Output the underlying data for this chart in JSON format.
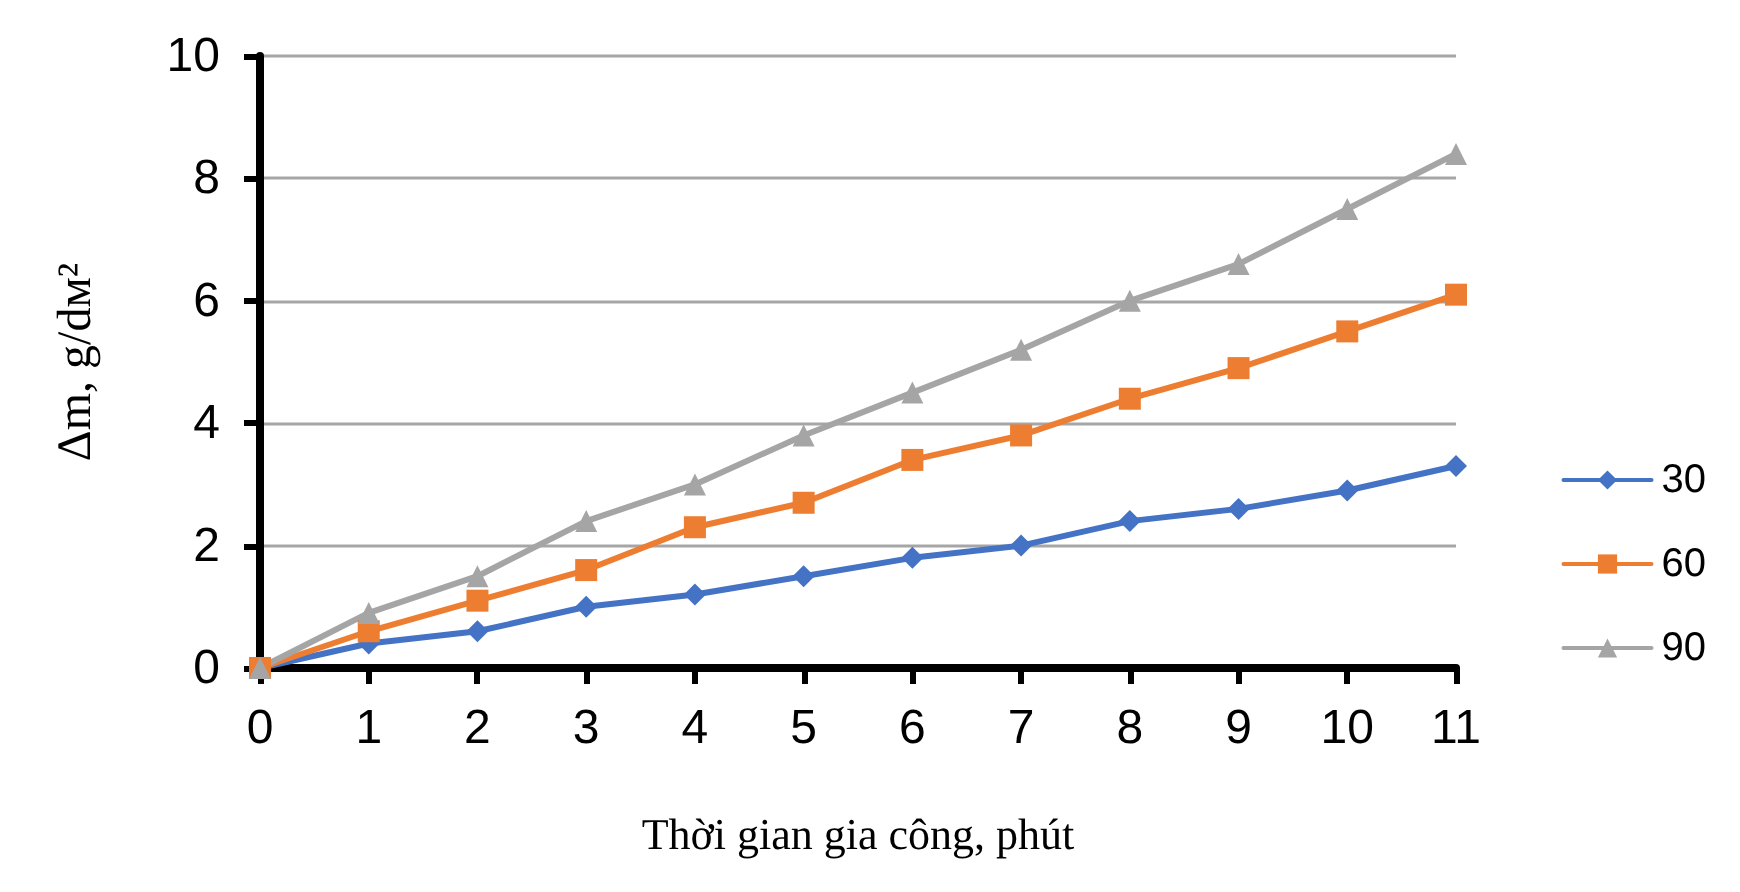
{
  "chart_data": {
    "type": "line",
    "xlabel": "Thời gian gia công, phút",
    "ylabel": "Δm, g/dм²",
    "x": [
      0,
      1,
      2,
      3,
      4,
      5,
      6,
      7,
      8,
      9,
      10,
      11
    ],
    "series": [
      {
        "name": "30",
        "color": "#4472c4",
        "marker": "diamond",
        "values": [
          0,
          0.4,
          0.6,
          1.0,
          1.2,
          1.5,
          1.8,
          2.0,
          2.4,
          2.6,
          2.9,
          3.3
        ]
      },
      {
        "name": "60",
        "color": "#ed7d31",
        "marker": "square",
        "values": [
          0,
          0.6,
          1.1,
          1.6,
          2.3,
          2.7,
          3.4,
          3.8,
          4.4,
          4.9,
          5.5,
          6.1
        ]
      },
      {
        "name": "90",
        "color": "#a5a5a5",
        "marker": "triangle",
        "values": [
          0,
          0.9,
          1.5,
          2.4,
          3.0,
          3.8,
          4.5,
          5.2,
          6.0,
          6.6,
          7.5,
          8.4
        ]
      }
    ],
    "xlim": [
      0,
      11
    ],
    "xticks": [
      0,
      1,
      2,
      3,
      4,
      5,
      6,
      7,
      8,
      9,
      10,
      11
    ],
    "ylim": [
      0,
      10
    ],
    "yticks": [
      0,
      2,
      4,
      6,
      8,
      10
    ],
    "grid": "y",
    "legend": "right",
    "line_style": "solid"
  }
}
